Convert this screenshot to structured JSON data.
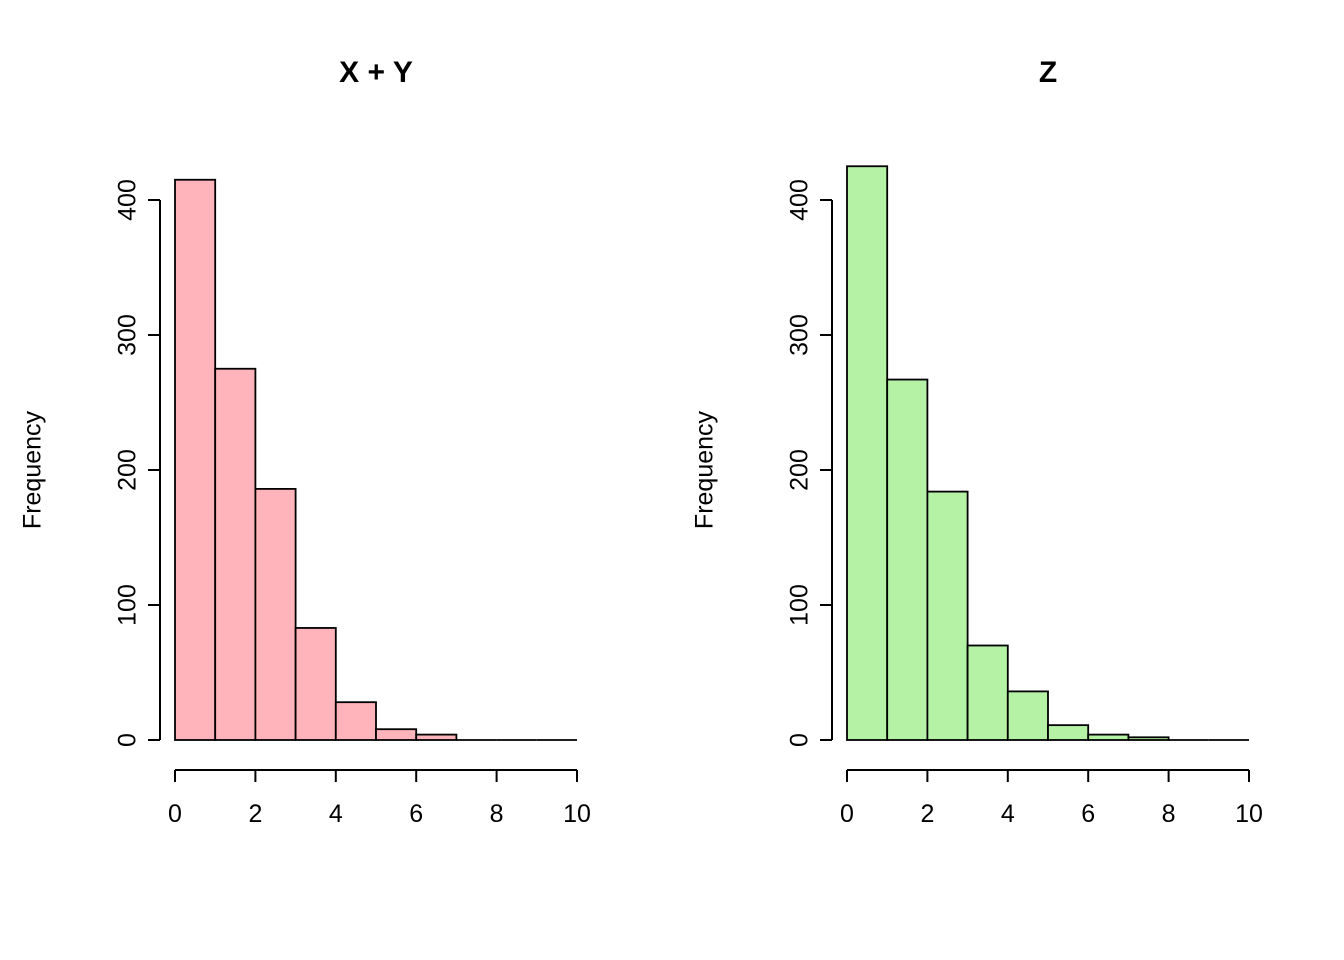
{
  "figure": {
    "background": "#ffffff",
    "text_color": "#000000"
  },
  "chart_data": [
    {
      "type": "bar",
      "subtype": "histogram",
      "title": "X + Y",
      "xlabel": "",
      "ylabel": "Frequency",
      "bar_fill": "#ffb3ba",
      "bar_stroke": "#000000",
      "bins_start": 0,
      "bin_width": 1,
      "counts": [
        415,
        275,
        186,
        83,
        28,
        8,
        4,
        0,
        0,
        0
      ],
      "xlim": [
        0,
        10
      ],
      "ylim": [
        0,
        400
      ],
      "xticks": [
        0,
        2,
        4,
        6,
        8,
        10
      ],
      "yticks": [
        0,
        100,
        200,
        300,
        400
      ],
      "grid": false,
      "legend": null
    },
    {
      "type": "bar",
      "subtype": "histogram",
      "title": "Z",
      "xlabel": "",
      "ylabel": "Frequency",
      "bar_fill": "#b5f2a6",
      "bar_stroke": "#000000",
      "bins_start": 0,
      "bin_width": 1,
      "counts": [
        425,
        267,
        184,
        70,
        36,
        11,
        4,
        2,
        0,
        0
      ],
      "xlim": [
        0,
        10
      ],
      "ylim": [
        0,
        400
      ],
      "xticks": [
        0,
        2,
        4,
        6,
        8,
        10
      ],
      "yticks": [
        0,
        100,
        200,
        300,
        400
      ],
      "grid": false,
      "legend": null
    }
  ]
}
